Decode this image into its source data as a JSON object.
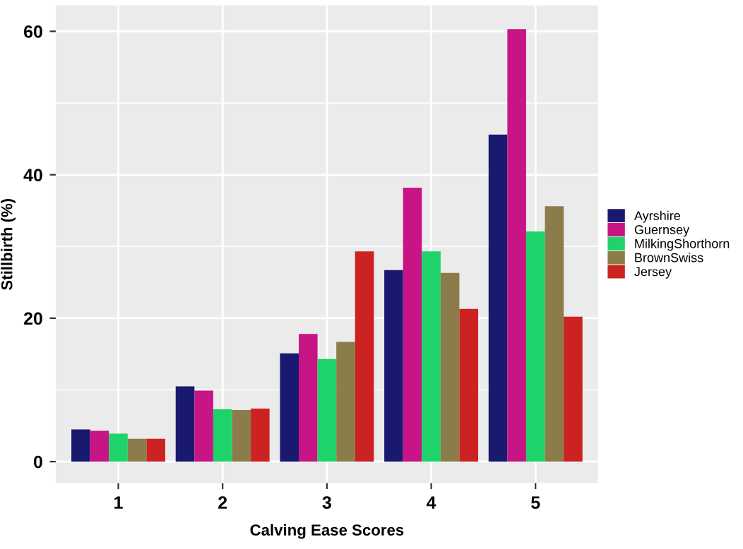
{
  "chart_data": {
    "type": "bar",
    "xlabel": "Calving Ease Scores",
    "ylabel": "Stillbirth (%)",
    "categories": [
      "1",
      "2",
      "3",
      "4",
      "5"
    ],
    "series": [
      {
        "name": "Ayrshire",
        "color": "#191970",
        "values": [
          4.5,
          10.5,
          15.1,
          26.7,
          45.6
        ]
      },
      {
        "name": "Guernsey",
        "color": "#c71585",
        "values": [
          4.3,
          9.9,
          17.8,
          38.2,
          60.3
        ]
      },
      {
        "name": "MilkingShorthorn",
        "color": "#1fd36b",
        "values": [
          3.9,
          7.3,
          14.3,
          29.3,
          32.1
        ]
      },
      {
        "name": "BrownSwiss",
        "color": "#8b7d4b",
        "values": [
          3.2,
          7.2,
          16.7,
          26.3,
          35.6
        ]
      },
      {
        "name": "Jersey",
        "color": "#cc2222",
        "values": [
          3.2,
          7.4,
          29.3,
          21.3,
          20.2
        ]
      }
    ],
    "ylim": [
      -3,
      63.6
    ],
    "yticks": [
      0,
      20,
      40,
      60
    ],
    "grid": true,
    "legend": "right"
  }
}
